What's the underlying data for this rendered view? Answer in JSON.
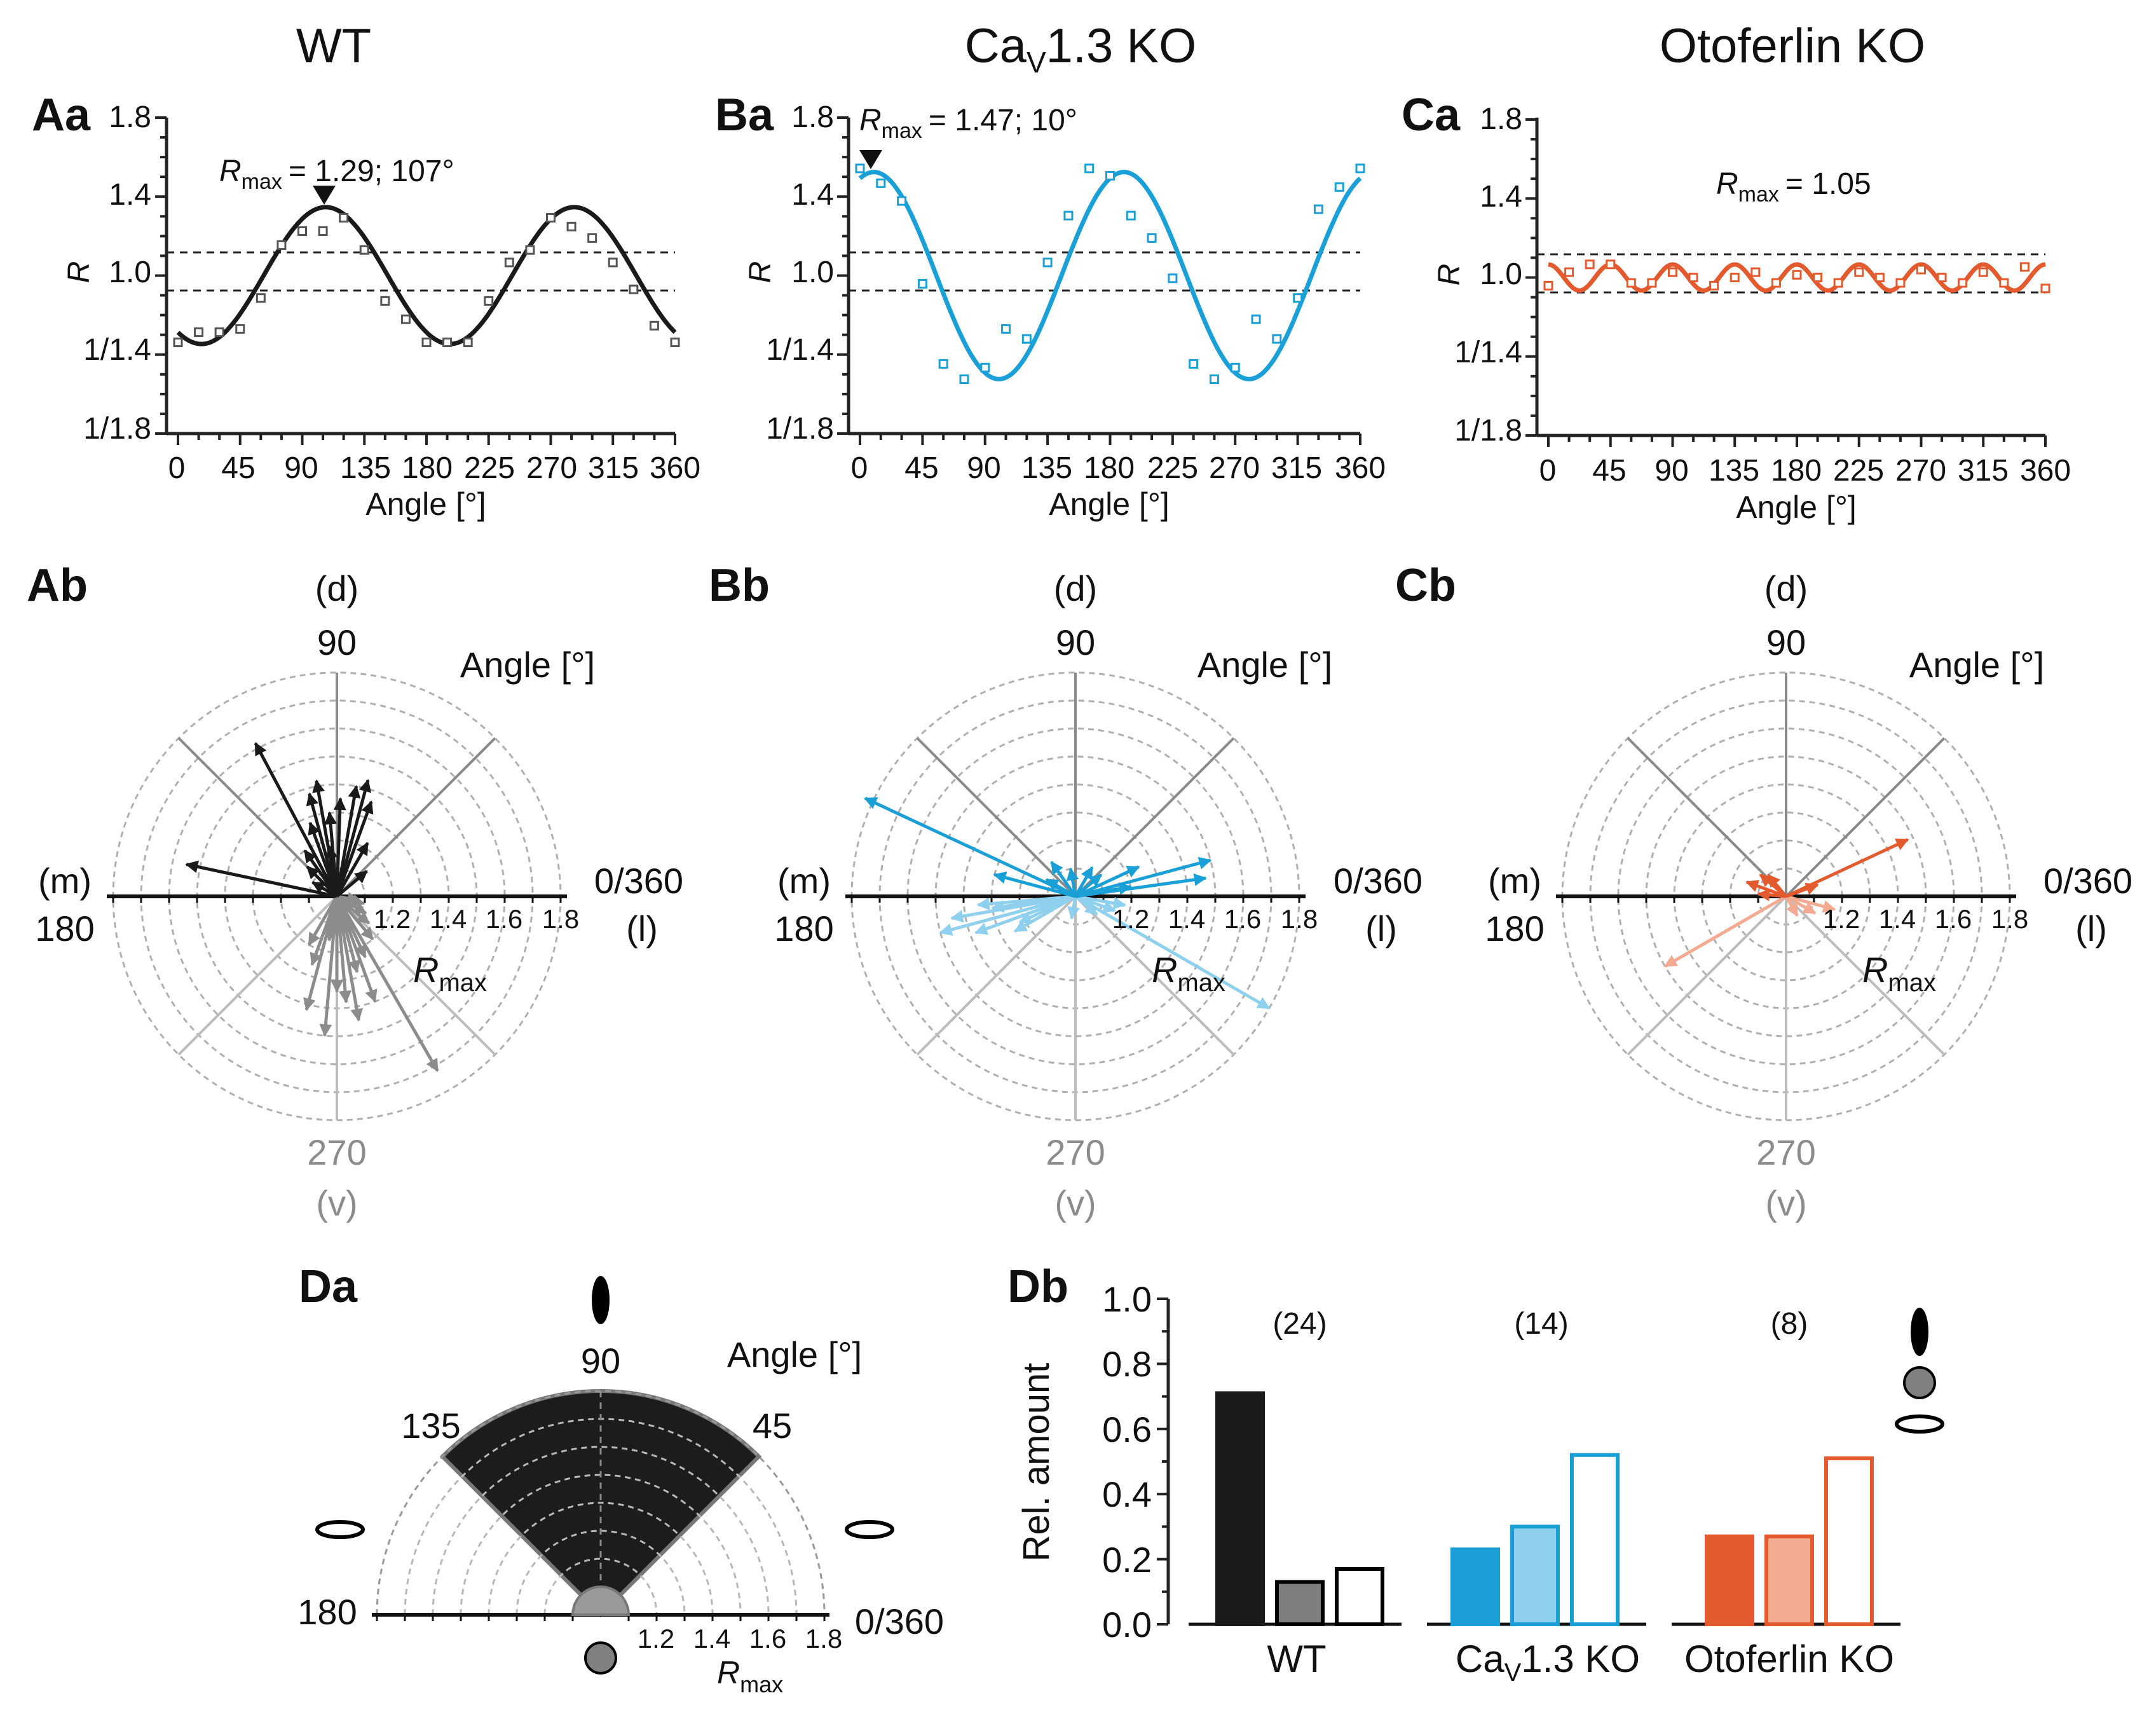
{
  "colors": {
    "wt": "#1a1a1a",
    "wt_gray": "#8c8c8c",
    "wt_light": "#c8c8c8",
    "cav": "#1aa0d6",
    "cav_light": "#8fd0ee",
    "oto": "#e25a2e",
    "oto_light": "#f2aa90",
    "bg": "#ffffff",
    "grid": "#b0b0b0"
  },
  "column_titles": {
    "wt": "WT",
    "cav_base": "Ca",
    "cav_sub": "V",
    "cav_rest": "1.3 KO",
    "oto": "Otoferlin KO"
  },
  "panels": {
    "aa": "Aa",
    "ba": "Ba",
    "ca": "Ca",
    "ab": "Ab",
    "bb": "Bb",
    "cb": "Cb",
    "da": "Da",
    "db": "Db"
  },
  "sine_panels": {
    "y_axis_label": "R",
    "x_axis_label": "Angle [°]",
    "y_tick_labels": [
      "1.8",
      "1.4",
      "1.0",
      "1/1.4",
      "1/1.8"
    ],
    "x_tick_labels": [
      "0",
      "45",
      "90",
      "135",
      "180",
      "225",
      "270",
      "315",
      "360"
    ],
    "rmax_symbol": "R",
    "rmax_sub": "max",
    "wt_rmax_text": "= 1.29; 107°",
    "cav_rmax_text": "= 1.47; 10°",
    "oto_rmax_text": "= 1.05"
  },
  "polar_panels": {
    "top_letter": "(d)",
    "top_angle": "90",
    "left_letter": "(m)",
    "left_angle": "180",
    "right_angle": "0/360",
    "right_letter": "(l)",
    "bottom_angle": "270",
    "bottom_letter": "(v)",
    "angle_label": "Angle [°]",
    "radial_ticks": [
      "1.2",
      "1.4",
      "1.6",
      "1.8"
    ],
    "rmax_symbol": "R",
    "rmax_sub": "max"
  },
  "da_panel": {
    "angle_label": "Angle [°]",
    "angle_90": "90",
    "angle_135": "135",
    "angle_45": "45",
    "angle_180": "180",
    "angle_0": "0/360",
    "radial_ticks": [
      "1.2",
      "1.4",
      "1.6",
      "1.8"
    ],
    "rmax_symbol": "R",
    "rmax_sub": "max"
  },
  "db_panel": {
    "y_label": "Rel. amount",
    "y_tick_labels": [
      "0.0",
      "0.2",
      "0.4",
      "0.6",
      "0.8",
      "1.0"
    ],
    "group_wt": "WT",
    "group_cav_base": "Ca",
    "group_cav_sub": "V",
    "group_cav_rest": "1.3 KO",
    "group_oto": "Otoferlin KO",
    "n_wt": "(24)",
    "n_cav": "(14)",
    "n_oto": "(8)"
  },
  "chart_data": [
    {
      "id": "Aa",
      "type": "line",
      "title": "WT",
      "xlabel": "Angle [°]",
      "ylabel": "R",
      "xlim": [
        0,
        360
      ],
      "ylim_log_ratio": [
        0.5556,
        1.8
      ],
      "fit": {
        "amplitude_ratio": 1.29,
        "phase_deg": 107,
        "period_deg": 180
      },
      "points": {
        "x": [
          0,
          15,
          30,
          45,
          60,
          75,
          90,
          105,
          120,
          135,
          150,
          165,
          180,
          195,
          210,
          225,
          240,
          255,
          270,
          285,
          300,
          315,
          330,
          345,
          360
        ],
        "y": [
          0.78,
          0.81,
          0.81,
          0.82,
          0.92,
          1.12,
          1.18,
          1.18,
          1.24,
          1.1,
          0.91,
          0.85,
          0.78,
          0.78,
          0.78,
          0.91,
          1.05,
          1.1,
          1.24,
          1.2,
          1.15,
          1.05,
          0.95,
          0.83,
          0.78
        ]
      },
      "threshold_lines": [
        1.1,
        0.909
      ]
    },
    {
      "id": "Ba",
      "type": "line",
      "title": "CaV1.3 KO",
      "xlabel": "Angle [°]",
      "ylabel": "R",
      "xlim": [
        0,
        360
      ],
      "ylim_log_ratio": [
        0.5556,
        1.8
      ],
      "fit": {
        "amplitude_ratio": 1.47,
        "phase_deg": 10,
        "period_deg": 180
      },
      "points": {
        "x": [
          0,
          15,
          30,
          45,
          60,
          75,
          90,
          105,
          120,
          135,
          150,
          165,
          180,
          195,
          210,
          225,
          240,
          255,
          270,
          285,
          300,
          315,
          330,
          345,
          360
        ],
        "y": [
          1.49,
          1.41,
          1.32,
          0.97,
          0.72,
          0.68,
          0.71,
          0.82,
          0.79,
          1.05,
          1.25,
          1.49,
          1.45,
          1.25,
          1.15,
          0.99,
          0.72,
          0.68,
          0.71,
          0.85,
          0.79,
          0.92,
          1.28,
          1.39,
          1.49
        ]
      },
      "threshold_lines": [
        1.1,
        0.909
      ]
    },
    {
      "id": "Ca",
      "type": "line",
      "title": "Otoferlin KO",
      "xlabel": "Angle [°]",
      "ylabel": "R",
      "xlim": [
        0,
        360
      ],
      "ylim_log_ratio": [
        0.5556,
        1.8
      ],
      "fit": {
        "amplitude_ratio": 1.05,
        "period_deg": 45
      },
      "points": {
        "x": [
          0,
          15,
          30,
          45,
          60,
          75,
          90,
          105,
          120,
          135,
          150,
          165,
          180,
          195,
          210,
          225,
          240,
          255,
          270,
          285,
          300,
          315,
          330,
          345,
          360
        ],
        "y": [
          0.97,
          1.02,
          1.05,
          1.05,
          0.98,
          0.98,
          1.02,
          1.0,
          0.97,
          1.0,
          1.02,
          0.98,
          1.01,
          1.0,
          0.98,
          1.02,
          1.0,
          0.98,
          1.03,
          1.0,
          0.98,
          1.02,
          0.98,
          1.04,
          0.96
        ]
      },
      "threshold_lines": [
        1.1,
        0.909
      ]
    },
    {
      "id": "Ab",
      "type": "scatter",
      "subtype": "polar-vectors",
      "title": "WT",
      "radial_range": [
        1.0,
        1.8
      ],
      "radial_ticks": [
        1.2,
        1.4,
        1.6,
        1.8
      ],
      "vectors_dorsal": [
        {
          "angle": 118,
          "r": 1.62
        },
        {
          "angle": 168,
          "r": 1.55
        },
        {
          "angle": 105,
          "r": 1.38
        },
        {
          "angle": 100,
          "r": 1.42
        },
        {
          "angle": 95,
          "r": 1.3
        },
        {
          "angle": 88,
          "r": 1.35
        },
        {
          "angle": 80,
          "r": 1.4
        },
        {
          "angle": 75,
          "r": 1.43
        },
        {
          "angle": 70,
          "r": 1.36
        },
        {
          "angle": 110,
          "r": 1.28
        },
        {
          "angle": 125,
          "r": 1.2
        },
        {
          "angle": 135,
          "r": 1.15
        },
        {
          "angle": 60,
          "r": 1.22
        },
        {
          "angle": 40,
          "r": 1.14
        },
        {
          "angle": 150,
          "r": 1.1
        },
        {
          "angle": 98,
          "r": 1.18
        }
      ],
      "vectors_ventral": [
        {
          "angle": 300,
          "r": 1.72
        },
        {
          "angle": 265,
          "r": 1.5
        },
        {
          "angle": 255,
          "r": 1.42
        },
        {
          "angle": 280,
          "r": 1.45
        },
        {
          "angle": 275,
          "r": 1.38
        },
        {
          "angle": 270,
          "r": 1.34
        },
        {
          "angle": 285,
          "r": 1.28
        },
        {
          "angle": 290,
          "r": 1.4
        },
        {
          "angle": 250,
          "r": 1.26
        },
        {
          "angle": 240,
          "r": 1.2
        },
        {
          "angle": 310,
          "r": 1.2
        },
        {
          "angle": 330,
          "r": 1.12
        },
        {
          "angle": 345,
          "r": 1.1
        },
        {
          "angle": 260,
          "r": 1.16
        },
        {
          "angle": 295,
          "r": 1.24
        },
        {
          "angle": 320,
          "r": 1.15
        },
        {
          "angle": 350,
          "r": 1.08
        }
      ]
    },
    {
      "id": "Bb",
      "type": "scatter",
      "subtype": "polar-vectors",
      "title": "CaV1.3 KO",
      "radial_range": [
        1.0,
        1.8
      ],
      "radial_ticks": [
        1.2,
        1.4,
        1.6,
        1.8
      ],
      "vectors_dorsal": [
        {
          "angle": 155,
          "r": 1.83
        },
        {
          "angle": 15,
          "r": 1.5
        },
        {
          "angle": 8,
          "r": 1.47
        },
        {
          "angle": 165,
          "r": 1.3
        },
        {
          "angle": 25,
          "r": 1.25
        },
        {
          "angle": 100,
          "r": 1.1
        },
        {
          "angle": 125,
          "r": 1.15
        },
        {
          "angle": 60,
          "r": 1.12
        },
        {
          "angle": 40,
          "r": 1.12
        },
        {
          "angle": 150,
          "r": 1.12
        },
        {
          "angle": 10,
          "r": 1.2
        }
      ],
      "vectors_ventral": [
        {
          "angle": 330,
          "r": 1.8
        },
        {
          "angle": 195,
          "r": 1.5
        },
        {
          "angle": 190,
          "r": 1.45
        },
        {
          "angle": 200,
          "r": 1.38
        },
        {
          "angle": 185,
          "r": 1.35
        },
        {
          "angle": 188,
          "r": 1.3
        },
        {
          "angle": 210,
          "r": 1.25
        },
        {
          "angle": 205,
          "r": 1.22
        },
        {
          "angle": 350,
          "r": 1.18
        },
        {
          "angle": 340,
          "r": 1.15
        },
        {
          "angle": 320,
          "r": 1.1
        },
        {
          "angle": 260,
          "r": 1.08
        }
      ]
    },
    {
      "id": "Cb",
      "type": "scatter",
      "subtype": "polar-vectors",
      "title": "Otoferlin KO",
      "radial_range": [
        1.0,
        1.8
      ],
      "radial_ticks": [
        1.2,
        1.4,
        1.6,
        1.8
      ],
      "vectors_dorsal": [
        {
          "angle": 25,
          "r": 1.48
        },
        {
          "angle": 160,
          "r": 1.15
        },
        {
          "angle": 140,
          "r": 1.12
        },
        {
          "angle": 130,
          "r": 1.1
        },
        {
          "angle": 175,
          "r": 1.1
        },
        {
          "angle": 20,
          "r": 1.12
        }
      ],
      "vectors_ventral": [
        {
          "angle": 210,
          "r": 1.5
        },
        {
          "angle": 345,
          "r": 1.18
        },
        {
          "angle": 330,
          "r": 1.12
        },
        {
          "angle": 300,
          "r": 1.08
        }
      ]
    },
    {
      "id": "Da",
      "type": "pie",
      "subtype": "polar-sector-schematic",
      "dorsal_sector_deg": [
        45,
        135
      ],
      "radial_range": [
        1.0,
        1.8
      ],
      "radial_ticks": [
        1.2,
        1.4,
        1.6,
        1.8
      ],
      "threshold_r": 1.1
    },
    {
      "id": "Db",
      "type": "bar",
      "ylabel": "Rel. amount",
      "ylim": [
        0,
        1.0
      ],
      "categories": [
        "WT",
        "CaV1.3 KO",
        "Otoferlin KO"
      ],
      "n": [
        24,
        14,
        8
      ],
      "series": [
        {
          "name": "dorsal",
          "values": [
            0.71,
            0.23,
            0.27
          ]
        },
        {
          "name": "untuned",
          "values": [
            0.13,
            0.3,
            0.27
          ]
        },
        {
          "name": "ventral/other",
          "values": [
            0.17,
            0.52,
            0.51
          ]
        }
      ]
    }
  ]
}
